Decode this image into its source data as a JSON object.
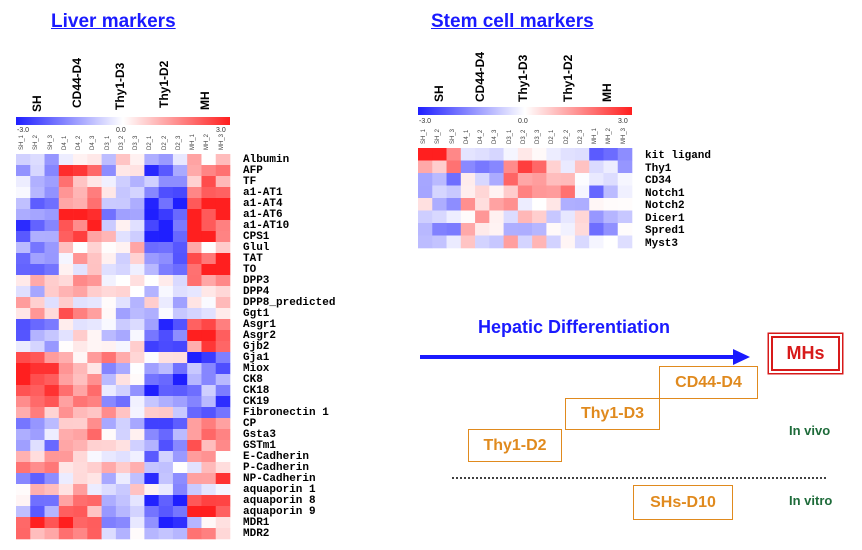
{
  "liver": {
    "title": "Liver markers",
    "groups": [
      "SH",
      "CD44-D4",
      "Thy1-D3",
      "Thy1-D2",
      "MH"
    ],
    "scale": {
      "min": "-3.0",
      "mid": "0.0",
      "max": "3.0"
    },
    "samples": [
      "SH_1",
      "SH_2",
      "SH_3",
      "D4_1",
      "D4_2",
      "D4_3",
      "D3_1",
      "D3_2",
      "D3_3",
      "D2_1",
      "D2_2",
      "D2_3",
      "MH_1",
      "MH_2",
      "MH_3"
    ],
    "genes": [
      "Albumin",
      "AFP",
      "TF",
      "a1-AT1",
      "a1-AT4",
      "a1-AT6",
      "a1-AT10",
      "CPS1",
      "Glul",
      "TAT",
      "TO",
      "DPP3",
      "DPP4",
      "DPP8_predicted",
      "Ggt1",
      "Asgr1",
      "Asgr2",
      "Gjb2",
      "Gja1",
      "Miox",
      "CK8",
      "CK18",
      "CK19",
      "Fibronectin 1",
      "CP",
      "Gsta3",
      "GSTm1",
      "E-Cadherin",
      "P-Cadherin",
      "NP-Cadherin",
      "aquaporin 1",
      "aquaporin 8",
      "aquaporin 9",
      "MDR1",
      "MDR2"
    ]
  },
  "stem": {
    "title": "Stem cell markers",
    "groups": [
      "SH",
      "CD44-D4",
      "Thy1-D3",
      "Thy1-D2",
      "MH"
    ],
    "scale": {
      "min": "-3.0",
      "mid": "0.0",
      "max": "3.0"
    },
    "samples": [
      "SH_1",
      "SH_2",
      "SH_3",
      "D4_1",
      "D4_2",
      "D4_3",
      "D3_1",
      "D3_2",
      "D3_3",
      "D2_1",
      "D2_2",
      "D2_3",
      "MH_1",
      "MH_2",
      "MH_3"
    ],
    "genes": [
      "kit ligand",
      "Thy1",
      "CD34",
      "Notch1",
      "Notch2",
      "Dicer1",
      "Spred1",
      "Myst3"
    ]
  },
  "diagram": {
    "hepatic_label": "Hepatic Differentiation",
    "stages": [
      "Thy1-D2",
      "Thy1-D3",
      "CD44-D4"
    ],
    "mhs": "MHs",
    "shs": "SHs-D10",
    "in_vivo": "In vivo",
    "in_vitro": "In vitro"
  },
  "colors": {
    "low": "#1f1fff",
    "mid": "#ffffff",
    "high": "#ff1f1f",
    "orange": "#e08a1e",
    "red": "#d71a1a",
    "green": "#1e6b3a",
    "blue": "#1a1aff"
  }
}
